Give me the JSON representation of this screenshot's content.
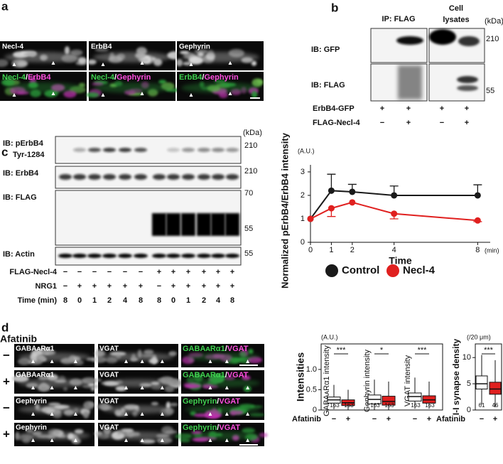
{
  "panel_letters": [
    "a",
    "b",
    "c",
    "d"
  ],
  "panel_a": {
    "single": [
      "Necl-4",
      "ErbB4",
      "Gephyrin"
    ],
    "merged": [
      [
        "Necl-4",
        "/",
        "ErbB4"
      ],
      [
        "Necl-4",
        "/",
        "Gephyrin"
      ],
      [
        "ErbB4",
        "/",
        "Gephyrin"
      ]
    ]
  },
  "panel_b": {
    "ip": "IP: FLAG",
    "lysates": [
      "Cell",
      "lysates"
    ],
    "kda": "(kDa)",
    "markers": [
      "210",
      "55"
    ],
    "rows": [
      "IB: GFP",
      "IB: FLAG"
    ],
    "lanes": [
      {
        "label": "ErbB4-GFP",
        "marks": [
          "+",
          "+",
          "+",
          "+"
        ]
      },
      {
        "label": "FLAG-Necl-4",
        "marks": [
          "−",
          "+",
          "−",
          "+"
        ]
      }
    ]
  },
  "panel_c": {
    "kda": "(kDa)",
    "rows": [
      [
        "IB: pErbB4",
        "Tyr-1284"
      ],
      [
        "IB: ErbB4"
      ],
      [
        "IB: FLAG"
      ],
      [
        "IB: Actin"
      ]
    ],
    "markers": [
      [
        "210"
      ],
      [
        "210"
      ],
      [
        "70",
        "55"
      ],
      [
        "55"
      ]
    ],
    "lanes": [
      {
        "label": "FLAG-Necl-4",
        "marks": [
          "−",
          "−",
          "−",
          "−",
          "−",
          "−",
          "+",
          "+",
          "+",
          "+",
          "+",
          "+"
        ]
      },
      {
        "label": "NRG1",
        "marks": [
          "−",
          "+",
          "+",
          "+",
          "+",
          "+",
          "−",
          "+",
          "+",
          "+",
          "+",
          "+"
        ]
      },
      {
        "label": "Time (min)",
        "marks": [
          "8",
          "0",
          "1",
          "2",
          "4",
          "8",
          "8",
          "0",
          "1",
          "2",
          "4",
          "8"
        ]
      }
    ]
  },
  "panel_d": {
    "heading": "Afatinib",
    "signs": [
      "−",
      "+",
      "−",
      "+"
    ],
    "rows": [
      [
        "GABAᴀRα1",
        "VGAT",
        [
          "GABAᴀRα1",
          "/",
          "VGAT"
        ]
      ],
      [
        "GABAᴀRα1",
        "VGAT",
        [
          "GABAᴀRα1",
          "/",
          "VGAT"
        ]
      ],
      [
        "Gephyrin",
        "VGAT",
        [
          "Gephyrin",
          "/",
          "VGAT"
        ]
      ],
      [
        "Gephyrin",
        "VGAT",
        [
          "Gephyrin",
          "/",
          "VGAT"
        ]
      ]
    ]
  },
  "chart_data": [
    {
      "type": "line",
      "ylabel": "Normalized pErbB4/ErbB4 intensity",
      "yunit": "(A.U.)",
      "xlabel": "Time",
      "xunit": "(min)",
      "x": [
        0,
        1,
        2,
        4,
        8
      ],
      "xlim": [
        0,
        8.6
      ],
      "ylim": [
        0,
        3.3
      ],
      "xticks": [
        0,
        1,
        2,
        4,
        8
      ],
      "yticks": [
        0,
        1,
        2,
        3
      ],
      "legend": "bottom",
      "series": [
        {
          "name": "Control",
          "color": "#1a1a1a",
          "values": [
            1,
            2.2,
            2.15,
            2.0,
            2.0
          ],
          "errors": [
            null,
            0.7,
            0.32,
            0.4,
            0.45
          ],
          "error_side": "up"
        },
        {
          "name": "Necl-4",
          "color": "#e0201f",
          "values": [
            1,
            1.45,
            1.7,
            1.22,
            0.93
          ],
          "errors": [
            null,
            0.35,
            null,
            0.22,
            0.05
          ],
          "error_side": "down"
        }
      ]
    },
    {
      "type": "box",
      "ylabel": "Intensities",
      "yunit": "(A.U.)",
      "ylim": [
        0,
        1.63
      ],
      "yticks": [
        0,
        0.5,
        {
          "value": 1,
          "label": "1.0"
        }
      ],
      "xlabel": "Afatinib",
      "groups": [
        {
          "label": "GABAᴀRα1 intensity",
          "significance": "***",
          "boxes": [
            {
              "x_label": "−",
              "color": "#ffffff",
              "whisker_low": 0.02,
              "q1": 0.17,
              "median": 0.25,
              "q3": 0.32,
              "whisker_high": 0.62,
              "n": 163
            },
            {
              "x_label": "+",
              "color": "#e0201f",
              "whisker_low": 0.0,
              "q1": 0.11,
              "median": 0.18,
              "q3": 0.25,
              "whisker_high": 0.5,
              "n": 163
            }
          ]
        },
        {
          "label": "Gephyrin intensity",
          "significance": "*",
          "boxes": [
            {
              "x_label": "−",
              "color": "#ffffff",
              "whisker_low": 0.0,
              "q1": 0.15,
              "median": 0.26,
              "q3": 0.37,
              "whisker_high": 0.75,
              "n": 163
            },
            {
              "x_label": "+",
              "color": "#e0201f",
              "whisker_low": 0.0,
              "q1": 0.12,
              "median": 0.21,
              "q3": 0.34,
              "whisker_high": 0.7,
              "n": 163
            }
          ]
        },
        {
          "label": "VGAT intensity",
          "significance": "***",
          "boxes": [
            {
              "x_label": "−",
              "color": "#ffffff",
              "whisker_low": 0.03,
              "q1": 0.22,
              "median": 0.33,
              "q3": 0.42,
              "whisker_high": 0.8,
              "n": 163
            },
            {
              "x_label": "+",
              "color": "#e0201f",
              "whisker_low": 0.03,
              "q1": 0.17,
              "median": 0.25,
              "q3": 0.35,
              "whisker_high": 0.7,
              "n": 163
            }
          ]
        }
      ]
    },
    {
      "type": "box",
      "ylabel": "I-I synapse density",
      "yunit": "(/20 μm)",
      "ylim": [
        0,
        12.6
      ],
      "yticks": [
        0,
        5,
        10
      ],
      "xlabel": "Afatinib",
      "groups": [
        {
          "label": null,
          "significance": "***",
          "boxes": [
            {
              "x_label": "−",
              "color": "#ffffff",
              "whisker_low": 1,
              "q1": 4,
              "median": 5,
              "q3": 6.5,
              "whisker_high": 10.5,
              "n": 61
            },
            {
              "x_label": "+",
              "color": "#e0201f",
              "whisker_low": 0.5,
              "q1": 3,
              "median": 4,
              "q3": 5.3,
              "whisker_high": 9.5,
              "n": 46
            }
          ]
        }
      ]
    }
  ]
}
